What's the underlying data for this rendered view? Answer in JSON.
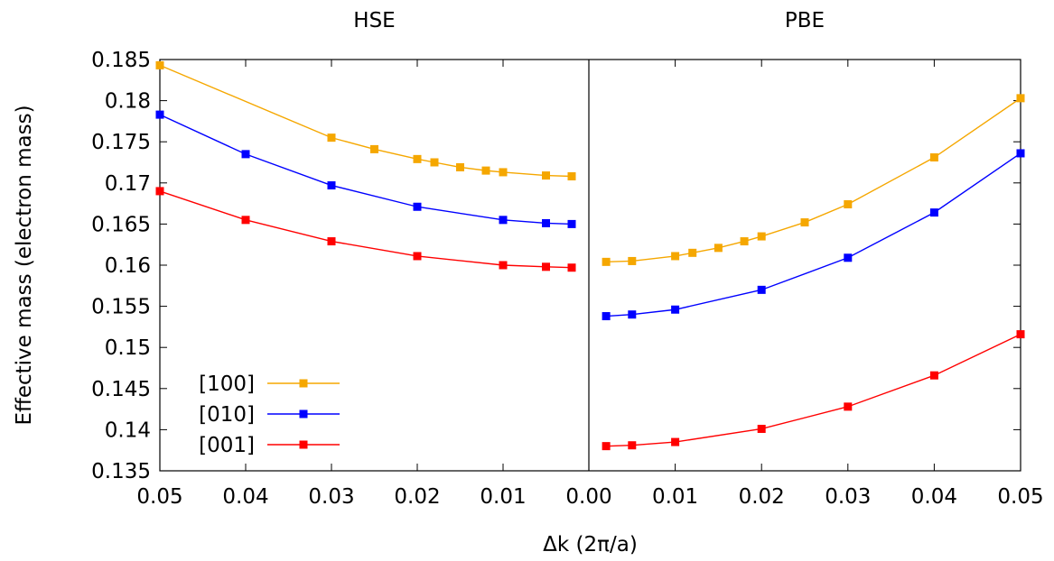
{
  "chart_data": {
    "type": "line",
    "ylabel": "Effective mass (electron mass)",
    "xlabel": "Δk (2π/a)",
    "ylim": [
      0.135,
      0.185
    ],
    "yticks": [
      "0.135",
      "0.14",
      "0.145",
      "0.15",
      "0.155",
      "0.16",
      "0.165",
      "0.17",
      "0.175",
      "0.18",
      "0.185"
    ],
    "grid": false,
    "legend_position": "bottom-left of left panel",
    "legend": [
      {
        "name": "[100]",
        "color": "#f5a700"
      },
      {
        "name": "[010]",
        "color": "#0000ff"
      },
      {
        "name": "[001]",
        "color": "#ff0000"
      }
    ],
    "panels": [
      {
        "title": "HSE",
        "xlim": [
          0.05,
          0.0
        ],
        "xticks": [
          "0.05",
          "0.04",
          "0.03",
          "0.02",
          "0.01",
          "0.00"
        ],
        "series": [
          {
            "name": "[100]",
            "color": "#f5a700",
            "x": [
              0.05,
              0.03,
              0.025,
              0.02,
              0.018,
              0.015,
              0.012,
              0.01,
              0.005,
              0.002
            ],
            "y": [
              0.1843,
              0.1755,
              0.1741,
              0.1729,
              0.1725,
              0.1719,
              0.1715,
              0.1713,
              0.1709,
              0.1708
            ]
          },
          {
            "name": "[010]",
            "color": "#0000ff",
            "x": [
              0.05,
              0.04,
              0.03,
              0.02,
              0.01,
              0.005,
              0.002
            ],
            "y": [
              0.1783,
              0.1735,
              0.1697,
              0.1671,
              0.1655,
              0.1651,
              0.165
            ]
          },
          {
            "name": "[001]",
            "color": "#ff0000",
            "x": [
              0.05,
              0.04,
              0.03,
              0.02,
              0.01,
              0.005,
              0.002
            ],
            "y": [
              0.169,
              0.1655,
              0.1629,
              0.1611,
              0.16,
              0.1598,
              0.1597
            ]
          }
        ]
      },
      {
        "title": "PBE",
        "xlim": [
          0.0,
          0.05
        ],
        "xticks": [
          "0.00",
          "0.01",
          "0.02",
          "0.03",
          "0.04",
          "0.05"
        ],
        "series": [
          {
            "name": "[100]",
            "color": "#f5a700",
            "x": [
              0.002,
              0.005,
              0.01,
              0.012,
              0.015,
              0.018,
              0.02,
              0.025,
              0.03,
              0.04,
              0.05
            ],
            "y": [
              0.1604,
              0.1605,
              0.1611,
              0.1615,
              0.1621,
              0.1629,
              0.1635,
              0.1652,
              0.1674,
              0.1731,
              0.1803
            ]
          },
          {
            "name": "[010]",
            "color": "#0000ff",
            "x": [
              0.002,
              0.005,
              0.01,
              0.02,
              0.03,
              0.04,
              0.05
            ],
            "y": [
              0.1538,
              0.154,
              0.1546,
              0.157,
              0.1609,
              0.1664,
              0.1736
            ]
          },
          {
            "name": "[001]",
            "color": "#ff0000",
            "x": [
              0.002,
              0.005,
              0.01,
              0.02,
              0.03,
              0.04,
              0.05
            ],
            "y": [
              0.138,
              0.1381,
              0.1385,
              0.1401,
              0.1428,
              0.1466,
              0.1516
            ]
          }
        ]
      }
    ]
  }
}
